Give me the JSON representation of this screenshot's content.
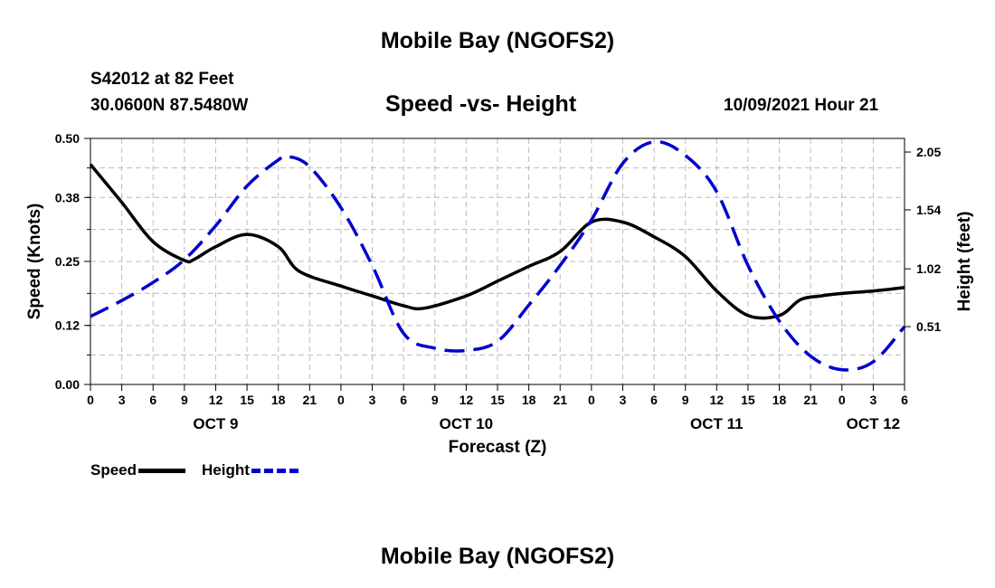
{
  "header": {
    "title": "Mobile Bay (NGOFS2)",
    "station": "S42012 at 82 Feet",
    "coords": "30.0600N  87.5480W",
    "subtitle": "Speed -vs- Height",
    "run": "10/09/2021 Hour 21",
    "footer_title": "Mobile Bay (NGOFS2)"
  },
  "legend": {
    "speed_label": "Speed",
    "height_label": "Height"
  },
  "colors": {
    "speed": "#000000",
    "height": "#0000cc",
    "grid": "#bbbbbb"
  },
  "chart_data": {
    "type": "line",
    "title": "Speed -vs- Height",
    "xlabel": "Forecast (Z)",
    "ylabel": "Speed (Knots)",
    "y2label": "Height (feet)",
    "xlim": [
      0,
      78
    ],
    "ylim": [
      0,
      0.5
    ],
    "y2lim": [
      0.0,
      2.17
    ],
    "x_ticks": [
      0,
      3,
      6,
      9,
      12,
      15,
      18,
      21,
      24,
      27,
      30,
      33,
      36,
      39,
      42,
      45,
      48,
      51,
      54,
      57,
      60,
      63,
      66,
      69,
      72,
      75,
      78
    ],
    "x_tick_labels": [
      "0",
      "3",
      "6",
      "9",
      "12",
      "15",
      "18",
      "21",
      "0",
      "3",
      "6",
      "9",
      "12",
      "15",
      "18",
      "21",
      "0",
      "3",
      "6",
      "9",
      "12",
      "15",
      "18",
      "21",
      "0",
      "3",
      "6"
    ],
    "day_labels": [
      {
        "x": 12,
        "label": "OCT 9"
      },
      {
        "x": 36,
        "label": "OCT 10"
      },
      {
        "x": 60,
        "label": "OCT 11"
      },
      {
        "x": 75,
        "label": "OCT 12"
      }
    ],
    "y_ticks": [
      0.0,
      0.12,
      0.25,
      0.38,
      0.5
    ],
    "y_tick_labels": [
      "0.00",
      "0.12",
      "0.25",
      "0.38",
      "0.50"
    ],
    "y2_ticks": [
      0.51,
      1.02,
      1.54,
      2.05
    ],
    "y2_tick_labels": [
      "0.51",
      "1.02",
      "1.54",
      "2.05"
    ],
    "grid": true,
    "series": [
      {
        "name": "Speed",
        "axis": "left",
        "style": "solid",
        "x": [
          0,
          3,
          6,
          9,
          10,
          12,
          15,
          18,
          20,
          24,
          27,
          30,
          32,
          36,
          39,
          42,
          45,
          48,
          51,
          54,
          57,
          60,
          63,
          66,
          68,
          70,
          72,
          75,
          78
        ],
        "values": [
          0.447,
          0.37,
          0.29,
          0.252,
          0.255,
          0.28,
          0.305,
          0.28,
          0.23,
          0.2,
          0.18,
          0.16,
          0.155,
          0.18,
          0.21,
          0.24,
          0.27,
          0.33,
          0.33,
          0.3,
          0.26,
          0.19,
          0.14,
          0.14,
          0.172,
          0.18,
          0.185,
          0.19,
          0.197
        ]
      },
      {
        "name": "Height",
        "axis": "right",
        "style": "dashed",
        "x": [
          0,
          3,
          6,
          9,
          12,
          15,
          18,
          19,
          21,
          24,
          27,
          30,
          33,
          36,
          39,
          42,
          45,
          48,
          51,
          54,
          57,
          60,
          63,
          66,
          69,
          72,
          75,
          78
        ],
        "values": [
          0.6,
          0.74,
          0.9,
          1.1,
          1.4,
          1.75,
          1.98,
          2.01,
          1.92,
          1.56,
          1.05,
          0.45,
          0.32,
          0.3,
          0.38,
          0.7,
          1.05,
          1.45,
          1.95,
          2.14,
          2.02,
          1.7,
          1.05,
          0.56,
          0.25,
          0.13,
          0.2,
          0.51
        ]
      }
    ]
  }
}
